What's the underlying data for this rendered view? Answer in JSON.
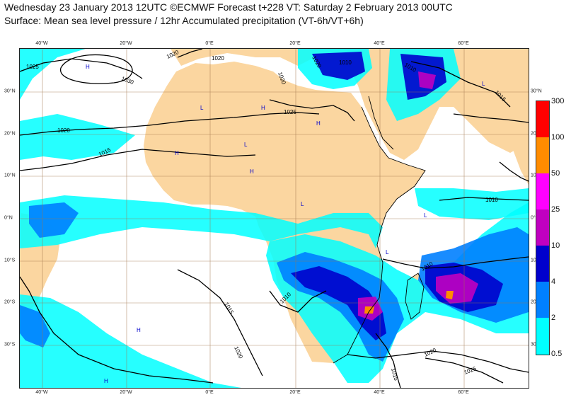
{
  "title": {
    "line1": "Wednesday 23 January 2013 12UTC ©ECMWF Forecast t+228 VT: Saturday 2 February 2013 00UTC",
    "line2": "Surface: Mean sea level pressure / 12hr Accumulated precipitation (VT-6h/VT+6h)"
  },
  "map": {
    "lon_labels": [
      "40°W",
      "20°W",
      "0°E",
      "20°E",
      "40°E",
      "60°E"
    ],
    "lat_labels": [
      "30°N",
      "20°N",
      "10°N",
      "0°N",
      "10°S",
      "20°S",
      "30°S"
    ],
    "isobar_labels": [
      "1025",
      "1020",
      "1020",
      "1030",
      "1020",
      "1020",
      "1010",
      "1010",
      "1025",
      "1020",
      "1015",
      "1010",
      "1010",
      "1010",
      "1015",
      "1020",
      "1015",
      "1020",
      "1025",
      "1015"
    ],
    "pressure_centers": [
      "H",
      "H",
      "H",
      "H",
      "H",
      "L",
      "L",
      "L",
      "L",
      "L",
      "L",
      "H",
      "H",
      "H"
    ],
    "colors": {
      "ocean": "#ffffff",
      "land": "#fbd6a0",
      "isobar": "#000000",
      "grid": "#a0744a"
    }
  },
  "colorbar": {
    "labels": [
      "300",
      "100",
      "50",
      "25",
      "10",
      "4",
      "2",
      "0.5"
    ],
    "colors": [
      "#ff0000",
      "#ff8c00",
      "#ff00ff",
      "#c000c0",
      "#0000cc",
      "#0080ff",
      "#00ffff"
    ]
  }
}
